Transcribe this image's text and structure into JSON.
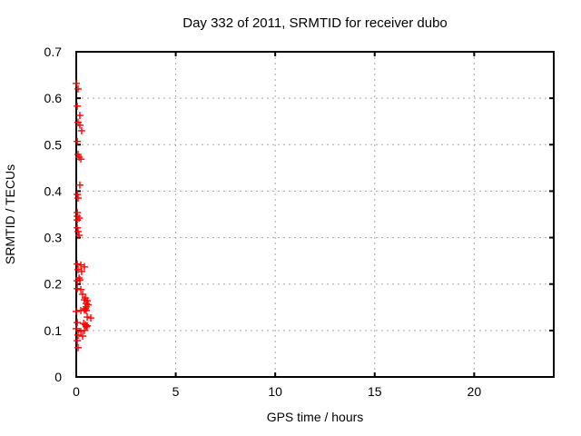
{
  "chart_data": {
    "type": "scatter",
    "title": "Day 332 of 2011, SRMTID for receiver dubo",
    "xlabel": "GPS time / hours",
    "ylabel": "SRMTID / TECUs",
    "xlim": [
      0,
      24
    ],
    "ylim": [
      0,
      0.7
    ],
    "xticks": {
      "values": [
        0,
        5,
        10,
        15,
        20
      ],
      "labels": [
        "0",
        "5",
        "10",
        "15",
        "20"
      ]
    },
    "yticks": {
      "values": [
        0,
        0.1,
        0.2,
        0.3,
        0.4,
        0.5,
        0.6,
        0.7
      ],
      "labels": [
        "0",
        "0.1",
        "0.2",
        "0.3",
        "0.4",
        "0.5",
        "0.6",
        "0.7"
      ]
    },
    "grid": true,
    "legend": "none",
    "marker": "plus",
    "colors": {
      "points": "#ff0000",
      "grid": "#a8a8a8",
      "axis": "#000000",
      "background": "#ffffff"
    },
    "series": [
      {
        "name": "SRMTID",
        "points": [
          [
            0.0,
            0.632
          ],
          [
            0.09,
            0.62
          ],
          [
            0.05,
            0.583
          ],
          [
            0.18,
            0.563
          ],
          [
            0.09,
            0.548
          ],
          [
            0.18,
            0.542
          ],
          [
            0.27,
            0.53
          ],
          [
            0.05,
            0.507
          ],
          [
            0.09,
            0.479
          ],
          [
            0.14,
            0.473
          ],
          [
            0.23,
            0.469
          ],
          [
            0.18,
            0.413
          ],
          [
            0.05,
            0.393
          ],
          [
            0.09,
            0.385
          ],
          [
            0.05,
            0.354
          ],
          [
            0.05,
            0.346
          ],
          [
            0.14,
            0.342
          ],
          [
            0.05,
            0.338
          ],
          [
            0.05,
            0.321
          ],
          [
            0.09,
            0.313
          ],
          [
            0.14,
            0.305
          ],
          [
            0.05,
            0.243
          ],
          [
            0.23,
            0.241
          ],
          [
            0.41,
            0.237
          ],
          [
            0.09,
            0.231
          ],
          [
            0.27,
            0.227
          ],
          [
            0.14,
            0.213
          ],
          [
            0.18,
            0.209
          ],
          [
            0.05,
            0.207
          ],
          [
            0.05,
            0.19
          ],
          [
            0.23,
            0.188
          ],
          [
            0.32,
            0.178
          ],
          [
            0.46,
            0.17
          ],
          [
            0.41,
            0.166
          ],
          [
            0.55,
            0.164
          ],
          [
            0.5,
            0.158
          ],
          [
            0.59,
            0.155
          ],
          [
            0.5,
            0.151
          ],
          [
            0.46,
            0.147
          ],
          [
            0.0,
            0.141
          ],
          [
            0.23,
            0.143
          ],
          [
            0.41,
            0.144
          ],
          [
            0.5,
            0.143
          ],
          [
            0.55,
            0.129
          ],
          [
            0.73,
            0.127
          ],
          [
            0.05,
            0.117
          ],
          [
            0.37,
            0.115
          ],
          [
            0.46,
            0.112
          ],
          [
            0.55,
            0.11
          ],
          [
            0.5,
            0.108
          ],
          [
            0.0,
            0.104
          ],
          [
            0.41,
            0.1
          ],
          [
            0.23,
            0.098
          ],
          [
            0.09,
            0.09
          ],
          [
            0.32,
            0.088
          ],
          [
            0.05,
            0.078
          ],
          [
            0.09,
            0.063
          ]
        ]
      }
    ]
  }
}
